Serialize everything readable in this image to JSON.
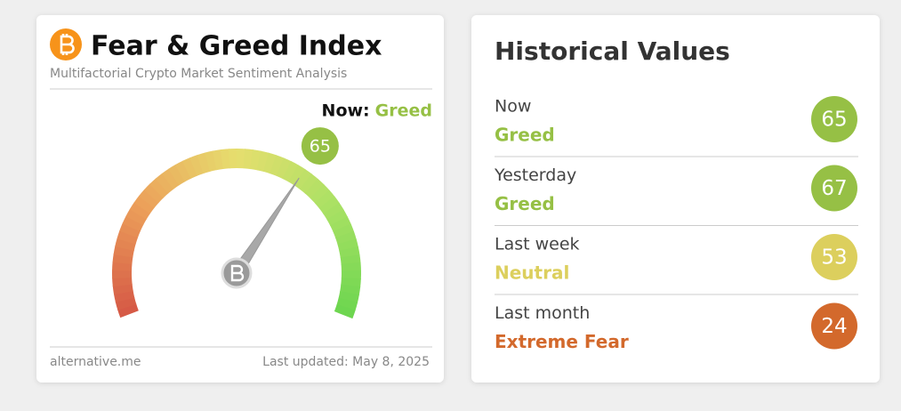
{
  "fear_greed": {
    "title": "Fear & Greed Index",
    "subtitle": "Multifactorial Crypto Market Sentiment Analysis",
    "now_label": "Now:",
    "now_class": "Greed",
    "value": 65,
    "range": [
      0,
      100
    ],
    "color": "#96c045",
    "source": "alternative.me",
    "updated": "Last updated: May 8, 2025"
  },
  "historical": {
    "title": "Historical Values",
    "rows": [
      {
        "period": "Now",
        "class": "Greed",
        "value": 65,
        "color": "#96c045"
      },
      {
        "period": "Yesterday",
        "class": "Greed",
        "value": 67,
        "color": "#96c045"
      },
      {
        "period": "Last week",
        "class": "Neutral",
        "value": 53,
        "color": "#dccf5d"
      },
      {
        "period": "Last month",
        "class": "Extreme Fear",
        "value": 24,
        "color": "#d3692c"
      }
    ]
  }
}
